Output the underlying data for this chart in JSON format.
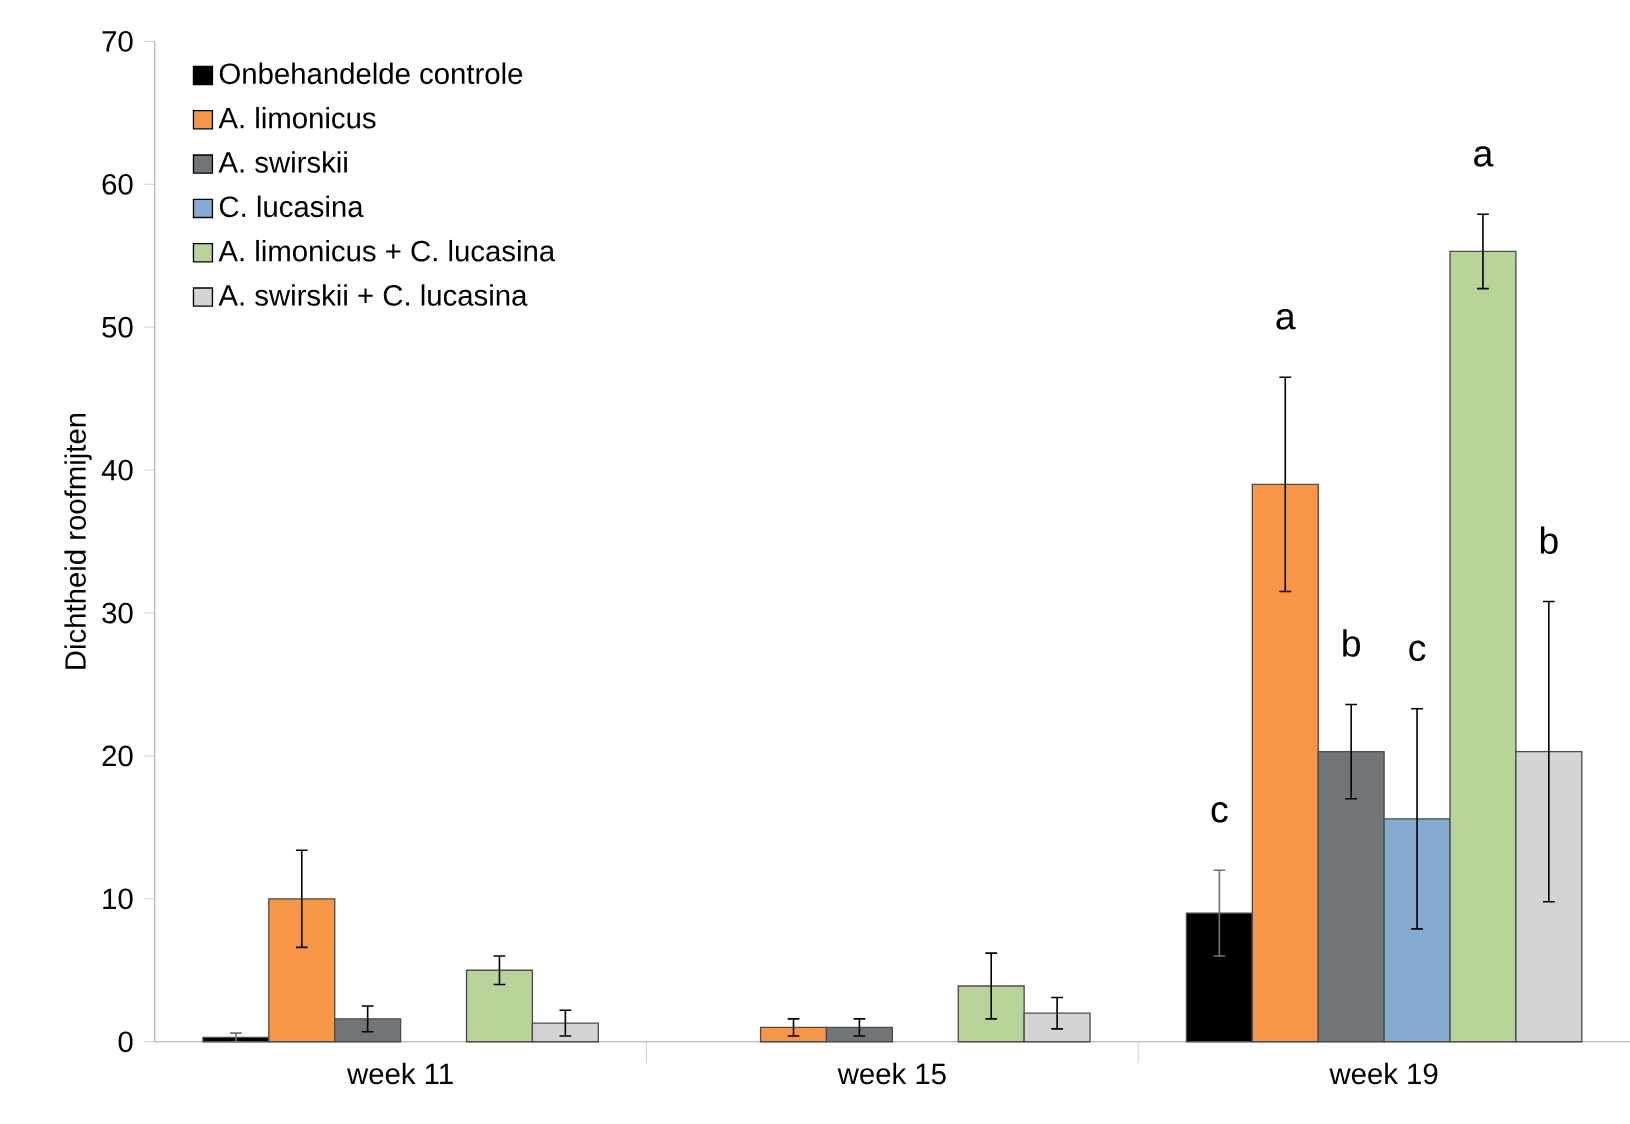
{
  "chart_data": {
    "type": "bar",
    "ylabel": "Dichtheid roofmijten",
    "categories": [
      "week 11",
      "week 15",
      "week 19"
    ],
    "series": [
      {
        "name": "Onbehandelde controle",
        "color": "#000000",
        "values": [
          0.3,
          null,
          9
        ],
        "errors": [
          0.3,
          null,
          3
        ]
      },
      {
        "name": "A. limonicus",
        "color": "#f79646",
        "values": [
          10,
          1,
          39
        ],
        "errors": [
          3.4,
          0.6,
          7.5
        ]
      },
      {
        "name": "A. swirskii",
        "color": "#727577",
        "values": [
          1.6,
          1,
          20.3
        ],
        "errors": [
          0.9,
          0.6,
          3.3
        ]
      },
      {
        "name": "C. lucasina",
        "color": "#86abd0",
        "values": [
          null,
          null,
          15.6
        ],
        "errors": [
          null,
          null,
          7.7
        ]
      },
      {
        "name": "A. limonicus + C. lucasina",
        "color": "#b8d498",
        "values": [
          5,
          3.9,
          55.3
        ],
        "errors": [
          1,
          2.3,
          2.6
        ]
      },
      {
        "name": "A. swirskii + C. lucasina",
        "color": "#d3d4d4",
        "values": [
          1.3,
          2,
          20.3
        ],
        "errors": [
          0.9,
          1.1,
          10.5
        ]
      }
    ],
    "annotations": [
      "c",
      "a",
      "b",
      "c",
      "a",
      "b"
    ],
    "ylim": [
      0,
      70
    ],
    "yticks": [
      0,
      10,
      20,
      30,
      40,
      50,
      60,
      70
    ],
    "grid": false,
    "legend": "top left"
  }
}
